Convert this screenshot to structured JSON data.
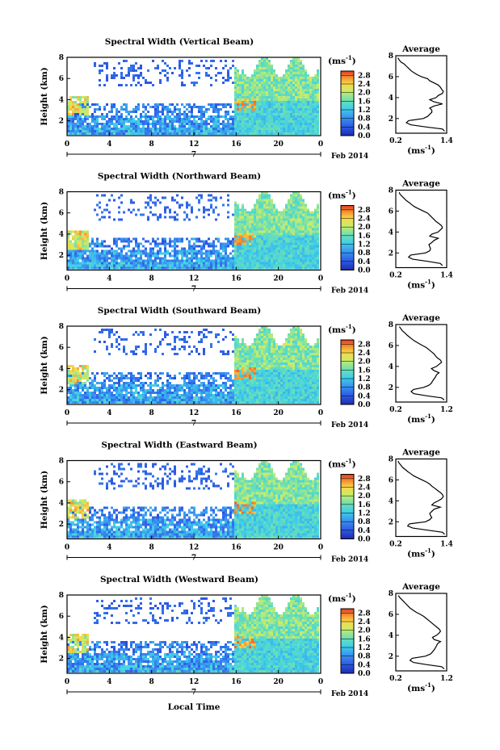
{
  "figure": {
    "xlabel": "Local Time",
    "date_label": "Feb 2014",
    "colorbar_unit_base": "(ms",
    "colorbar_unit_exp": "-1",
    "colorbar_unit_close": ")"
  },
  "chart_data": [
    {
      "type": "heatmap",
      "title": "Spectral Width (Vertical Beam)",
      "ylabel": "Height (km)",
      "xlabel": "Local Time",
      "x_ticks": [
        "0",
        "4",
        "8",
        "12",
        "16",
        "20",
        "0"
      ],
      "x_date_marker": "7",
      "xlim": [
        0,
        24
      ],
      "y_ticks": [
        "2",
        "4",
        "6",
        "8"
      ],
      "ylim": [
        0.6,
        8
      ],
      "colorbar": {
        "unit": "(ms-1)",
        "ticks": [
          "0.0",
          "0.4",
          "0.8",
          "1.2",
          "1.6",
          "2.0",
          "2.4",
          "2.8"
        ],
        "range": [
          0,
          3.0
        ]
      },
      "avg_profile": {
        "title": "Average",
        "xlabel": "(ms-1)",
        "x_ticks": [
          "0.2",
          "1.4"
        ],
        "xlim": [
          0.2,
          1.4
        ],
        "y_ticks": [
          "2",
          "4",
          "6",
          "8"
        ],
        "ylim": [
          0.6,
          8
        ],
        "heights": [
          0.8,
          1.0,
          1.2,
          1.4,
          1.6,
          1.8,
          2.0,
          2.2,
          2.4,
          2.6,
          2.8,
          3.0,
          3.2,
          3.4,
          3.6,
          3.8,
          4.0,
          4.2,
          4.4,
          4.6,
          4.8,
          5.0,
          5.2,
          5.4,
          5.6,
          5.8,
          6.0,
          6.2,
          6.4,
          6.6,
          6.8,
          7.0,
          7.2,
          7.4,
          7.6,
          7.8
        ],
        "values": [
          1.35,
          1.3,
          0.9,
          0.55,
          0.45,
          0.5,
          0.85,
          0.95,
          1.0,
          1.05,
          1.05,
          1.0,
          1.1,
          1.3,
          1.1,
          1.0,
          1.15,
          1.2,
          1.3,
          1.32,
          1.28,
          1.25,
          1.2,
          1.1,
          1.0,
          0.95,
          0.8,
          0.7,
          0.62,
          0.55,
          0.5,
          0.45,
          0.4,
          0.32,
          0.28,
          0.25
        ]
      }
    },
    {
      "type": "heatmap",
      "title": "Spectral Width (Northward Beam)",
      "ylabel": "Height (km)",
      "xlabel": "Local Time",
      "x_ticks": [
        "0",
        "4",
        "8",
        "12",
        "16",
        "20",
        "0"
      ],
      "x_date_marker": "7",
      "xlim": [
        0,
        24
      ],
      "y_ticks": [
        "2",
        "4",
        "6",
        "8"
      ],
      "ylim": [
        0.6,
        8
      ],
      "colorbar": {
        "unit": "(ms-1)",
        "ticks": [
          "0.0",
          "0.4",
          "0.8",
          "1.2",
          "1.6",
          "2.0",
          "2.4",
          "2.8"
        ],
        "range": [
          0,
          3.0
        ]
      },
      "avg_profile": {
        "title": "Average",
        "xlabel": "(ms-1)",
        "x_ticks": [
          "0.2",
          "1.4"
        ],
        "xlim": [
          0.2,
          1.4
        ],
        "y_ticks": [
          "2",
          "4",
          "6",
          "8"
        ],
        "ylim": [
          0.6,
          8
        ],
        "heights": [
          0.8,
          1.0,
          1.2,
          1.4,
          1.6,
          1.8,
          2.0,
          2.2,
          2.4,
          2.6,
          2.8,
          3.0,
          3.2,
          3.4,
          3.6,
          3.8,
          4.0,
          4.2,
          4.4,
          4.6,
          4.8,
          5.0,
          5.2,
          5.4,
          5.6,
          5.8,
          6.0,
          6.2,
          6.4,
          6.6,
          6.8,
          7.0,
          7.2,
          7.4,
          7.6,
          7.8
        ],
        "values": [
          1.3,
          1.25,
          0.95,
          0.6,
          0.5,
          0.55,
          0.9,
          1.0,
          1.02,
          1.0,
          0.98,
          1.05,
          1.1,
          1.2,
          1.0,
          1.05,
          1.2,
          1.25,
          1.3,
          1.28,
          1.22,
          1.15,
          1.1,
          1.05,
          1.0,
          0.95,
          0.85,
          0.75,
          0.65,
          0.58,
          0.52,
          0.45,
          0.4,
          0.35,
          0.3,
          0.28
        ]
      }
    },
    {
      "type": "heatmap",
      "title": "Spectral Width (Southward Beam)",
      "ylabel": "Height (km)",
      "xlabel": "Local Time",
      "x_ticks": [
        "0",
        "4",
        "8",
        "12",
        "16",
        "20",
        "0"
      ],
      "x_date_marker": "7",
      "xlim": [
        0,
        24
      ],
      "y_ticks": [
        "2",
        "4",
        "6",
        "8"
      ],
      "ylim": [
        0.6,
        8
      ],
      "colorbar": {
        "unit": "(ms-1)",
        "ticks": [
          "0.0",
          "0.4",
          "0.8",
          "1.2",
          "1.6",
          "2.0",
          "2.4",
          "2.8"
        ],
        "range": [
          0,
          3.0
        ]
      },
      "avg_profile": {
        "title": "Average",
        "xlabel": "(ms-1)",
        "x_ticks": [
          "0.2",
          "1.2"
        ],
        "xlim": [
          0.2,
          1.2
        ],
        "y_ticks": [
          "2",
          "4",
          "6",
          "8"
        ],
        "ylim": [
          0.6,
          8
        ],
        "heights": [
          0.8,
          1.0,
          1.2,
          1.4,
          1.6,
          1.8,
          2.0,
          2.2,
          2.4,
          2.6,
          2.8,
          3.0,
          3.2,
          3.4,
          3.6,
          3.8,
          4.0,
          4.2,
          4.4,
          4.6,
          4.8,
          5.0,
          5.2,
          5.4,
          5.6,
          5.8,
          6.0,
          6.2,
          6.4,
          6.6,
          6.8,
          7.0,
          7.2,
          7.4,
          7.6,
          7.8
        ],
        "values": [
          1.15,
          1.1,
          0.8,
          0.55,
          0.5,
          0.55,
          0.75,
          0.85,
          0.9,
          0.92,
          0.95,
          0.98,
          1.0,
          1.05,
          0.95,
          0.9,
          1.0,
          1.05,
          1.1,
          1.08,
          1.02,
          0.98,
          0.95,
          0.9,
          0.85,
          0.8,
          0.72,
          0.65,
          0.58,
          0.52,
          0.47,
          0.42,
          0.38,
          0.33,
          0.3,
          0.27
        ]
      }
    },
    {
      "type": "heatmap",
      "title": "Spectral Width (Eastward Beam)",
      "ylabel": "Height (km)",
      "xlabel": "Local Time",
      "x_ticks": [
        "0",
        "4",
        "8",
        "12",
        "16",
        "20",
        "0"
      ],
      "x_date_marker": "7",
      "xlim": [
        0,
        24
      ],
      "y_ticks": [
        "2",
        "4",
        "6",
        "8"
      ],
      "ylim": [
        0.6,
        8
      ],
      "colorbar": {
        "unit": "(ms-1)",
        "ticks": [
          "0.0",
          "0.4",
          "0.8",
          "1.2",
          "1.6",
          "2.0",
          "2.4",
          "2.8"
        ],
        "range": [
          0,
          3.0
        ]
      },
      "avg_profile": {
        "title": "Average",
        "xlabel": "(ms-1)",
        "x_ticks": [
          "0.2",
          "1.4"
        ],
        "xlim": [
          0.2,
          1.4
        ],
        "y_ticks": [
          "2",
          "4",
          "6",
          "8"
        ],
        "ylim": [
          0.6,
          8
        ],
        "heights": [
          0.8,
          1.0,
          1.2,
          1.4,
          1.6,
          1.8,
          2.0,
          2.2,
          2.4,
          2.6,
          2.8,
          3.0,
          3.2,
          3.4,
          3.6,
          3.8,
          4.0,
          4.2,
          4.4,
          4.6,
          4.8,
          5.0,
          5.2,
          5.4,
          5.6,
          5.8,
          6.0,
          6.2,
          6.4,
          6.6,
          6.8,
          7.0,
          7.2,
          7.4,
          7.6,
          7.8
        ],
        "values": [
          1.35,
          1.3,
          0.95,
          0.6,
          0.48,
          0.52,
          0.9,
          1.0,
          1.05,
          1.02,
          1.0,
          1.05,
          1.1,
          1.25,
          1.05,
          1.1,
          1.2,
          1.28,
          1.32,
          1.3,
          1.25,
          1.18,
          1.12,
          1.05,
          1.0,
          0.92,
          0.82,
          0.72,
          0.62,
          0.55,
          0.48,
          0.42,
          0.36,
          0.32,
          0.28,
          0.25
        ]
      }
    },
    {
      "type": "heatmap",
      "title": "Spectral Width (Westward Beam)",
      "ylabel": "Height (km)",
      "xlabel": "Local Time",
      "x_ticks": [
        "0",
        "4",
        "8",
        "12",
        "16",
        "20",
        "0"
      ],
      "x_date_marker": "7",
      "xlim": [
        0,
        24
      ],
      "y_ticks": [
        "2",
        "4",
        "6",
        "8"
      ],
      "ylim": [
        0.6,
        8
      ],
      "colorbar": {
        "unit": "(ms-1)",
        "ticks": [
          "0.0",
          "0.4",
          "0.8",
          "1.2",
          "1.6",
          "2.0",
          "2.4",
          "2.8"
        ],
        "range": [
          0,
          3.0
        ]
      },
      "avg_profile": {
        "title": "Average",
        "xlabel": "(ms-1)",
        "x_ticks": [
          "0.2",
          "1.2"
        ],
        "xlim": [
          0.2,
          1.2
        ],
        "y_ticks": [
          "2",
          "4",
          "6",
          "8"
        ],
        "ylim": [
          0.6,
          8
        ],
        "heights": [
          0.8,
          1.0,
          1.2,
          1.4,
          1.6,
          1.8,
          2.0,
          2.2,
          2.4,
          2.6,
          2.8,
          3.0,
          3.2,
          3.4,
          3.6,
          3.8,
          4.0,
          4.2,
          4.4,
          4.6,
          4.8,
          5.0,
          5.2,
          5.4,
          5.6,
          5.8,
          6.0,
          6.2,
          6.4,
          6.6,
          6.8,
          7.0,
          7.2,
          7.4,
          7.6,
          7.8
        ],
        "values": [
          1.15,
          1.1,
          0.8,
          0.55,
          0.48,
          0.52,
          0.78,
          0.88,
          0.92,
          0.95,
          0.98,
          1.0,
          1.02,
          1.08,
          0.95,
          0.92,
          1.0,
          1.05,
          1.08,
          1.05,
          1.0,
          0.95,
          0.9,
          0.85,
          0.8,
          0.75,
          0.68,
          0.6,
          0.54,
          0.48,
          0.44,
          0.4,
          0.36,
          0.32,
          0.28,
          0.25
        ]
      }
    }
  ]
}
